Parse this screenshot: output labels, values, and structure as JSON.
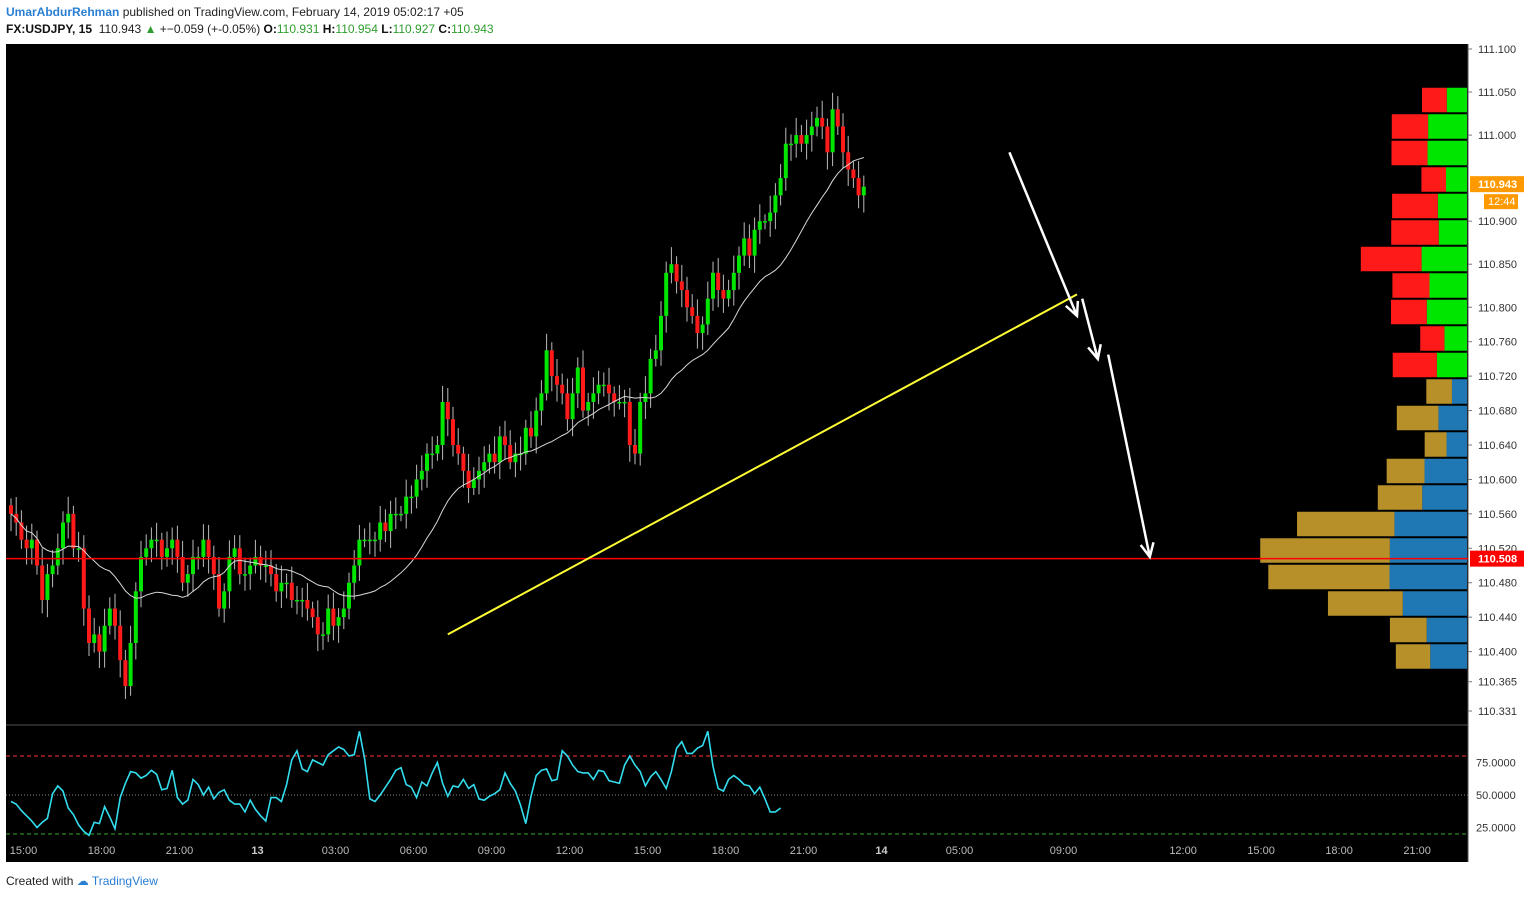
{
  "header": {
    "author": "UmarAbdurRehman",
    "published": "published on TradingView.com, February 14, 2019 05:02:17 +05",
    "symbol": "FX:USDJPY, 15",
    "last": "110.943",
    "change": "+−0.059 (+-0.05%)",
    "o_label": "O:",
    "o": "110.931",
    "h_label": "H:",
    "h": "110.954",
    "l_label": "L:",
    "l": "110.927",
    "c_label": "C:",
    "c": "110.943"
  },
  "footer": {
    "created": "Created with",
    "brand": "TradingView"
  },
  "colors": {
    "bull": "#00e600",
    "bear": "#ff1a1a",
    "background": "#000000",
    "trendline": "#ffff33",
    "support": "#ff0000",
    "oscillator": "#33ddee",
    "vp_up": "#1f77b4",
    "vp_down": "#b8902a"
  },
  "chart_data": [
    {
      "type": "candlestick",
      "symbol": "FX:USDJPY",
      "interval": "15",
      "ylim": [
        110.331,
        111.1
      ],
      "y_ticks": [
        "111.100",
        "111.050",
        "111.000",
        "110.900",
        "110.850",
        "110.800",
        "110.760",
        "110.720",
        "110.680",
        "110.640",
        "110.600",
        "110.560",
        "110.520",
        "110.480",
        "110.440",
        "110.400",
        "110.365",
        "110.331"
      ],
      "x_ticks": [
        "15:00",
        "18:00",
        "21:00",
        "13",
        "03:00",
        "06:00",
        "09:00",
        "12:00",
        "15:00",
        "18:00",
        "21:00",
        "14",
        "05:00",
        "09:00",
        "12:00",
        "15:00",
        "18:00",
        "21:00"
      ],
      "price_labels": {
        "last": "110.943",
        "countdown": "12:44",
        "support": "110.508"
      },
      "support_level": 110.508,
      "trendline": {
        "from": [
          84,
          110.42
        ],
        "to": [
          205,
          110.815
        ]
      },
      "arrows": [
        {
          "from": [
            192,
            110.98
          ],
          "to": [
            205,
            110.79
          ]
        },
        {
          "from": [
            206,
            110.81
          ],
          "to": [
            209,
            110.74
          ]
        },
        {
          "from": [
            211,
            110.745
          ],
          "to": [
            219,
            110.51
          ]
        }
      ],
      "closes": [
        110.56,
        110.55,
        110.53,
        110.52,
        110.53,
        110.5,
        110.46,
        110.49,
        110.5,
        110.52,
        110.55,
        110.56,
        110.52,
        110.52,
        110.45,
        110.41,
        110.42,
        110.4,
        110.43,
        110.45,
        110.43,
        110.39,
        110.36,
        110.41,
        110.47,
        110.51,
        110.52,
        110.53,
        110.53,
        110.51,
        110.52,
        110.53,
        110.51,
        110.48,
        110.49,
        110.51,
        110.51,
        110.53,
        110.51,
        110.49,
        110.45,
        110.47,
        110.51,
        110.52,
        110.49,
        110.49,
        110.5,
        110.51,
        110.5,
        110.5,
        110.49,
        110.47,
        110.48,
        110.48,
        110.46,
        110.46,
        110.46,
        110.45,
        110.44,
        110.42,
        110.42,
        110.45,
        110.43,
        110.44,
        110.45,
        110.48,
        110.5,
        110.53,
        110.53,
        110.53,
        110.53,
        110.55,
        110.54,
        110.56,
        110.56,
        110.56,
        110.58,
        110.58,
        110.6,
        110.61,
        110.63,
        110.63,
        110.64,
        110.69,
        110.67,
        110.64,
        110.63,
        110.61,
        110.59,
        110.6,
        110.61,
        110.62,
        110.63,
        110.62,
        110.65,
        110.64,
        110.62,
        110.63,
        110.63,
        110.66,
        110.65,
        110.68,
        110.7,
        110.75,
        110.72,
        110.71,
        110.7,
        110.67,
        110.7,
        110.73,
        110.68,
        110.69,
        110.7,
        110.71,
        110.71,
        110.7,
        110.69,
        110.69,
        110.69,
        110.64,
        110.63,
        110.69,
        110.7,
        110.74,
        110.75,
        110.79,
        110.84,
        110.85,
        110.83,
        110.82,
        110.8,
        110.79,
        110.77,
        110.78,
        110.81,
        110.84,
        110.82,
        110.81,
        110.82,
        110.84,
        110.86,
        110.88,
        110.86,
        110.89,
        110.9,
        110.9,
        110.91,
        110.93,
        110.95,
        110.99,
        110.99,
        111.0,
        110.99,
        111.0,
        111.01,
        111.02,
        111.01,
        110.98,
        111.03,
        111.01,
        110.98,
        110.96,
        110.95,
        110.93,
        110.94
      ]
    },
    {
      "type": "line",
      "name": "",
      "ylim": [
        0,
        100
      ],
      "y_ticks": [
        "75.0000",
        "50.0000",
        "25.0000"
      ],
      "levels": [
        80,
        50,
        20
      ],
      "values": [
        45,
        43,
        38,
        34,
        30,
        25,
        29,
        32,
        51,
        57,
        53,
        40,
        35,
        27,
        22,
        19,
        29,
        28,
        41,
        33,
        24,
        48,
        59,
        68,
        67,
        63,
        65,
        69,
        66,
        54,
        55,
        69,
        48,
        43,
        46,
        62,
        58,
        50,
        56,
        47,
        52,
        54,
        46,
        43,
        43,
        37,
        46,
        39,
        34,
        30,
        48,
        48,
        45,
        58,
        77,
        84,
        70,
        68,
        77,
        75,
        73,
        81,
        84,
        87,
        85,
        80,
        81,
        99,
        78,
        47,
        45,
        50,
        56,
        62,
        69,
        71,
        58,
        56,
        48,
        60,
        57,
        67,
        75,
        59,
        49,
        57,
        56,
        62,
        55,
        58,
        47,
        46,
        49,
        51,
        54,
        67,
        59,
        53,
        42,
        28,
        49,
        65,
        69,
        70,
        61,
        62,
        84,
        80,
        73,
        68,
        67,
        67,
        62,
        69,
        68,
        61,
        60,
        59,
        73,
        80,
        73,
        68,
        57,
        64,
        68,
        62,
        55,
        68,
        86,
        91,
        82,
        82,
        86,
        88,
        99,
        72,
        55,
        53,
        62,
        65,
        62,
        58,
        57,
        51,
        56,
        47,
        37,
        37,
        40
      ]
    }
  ]
}
